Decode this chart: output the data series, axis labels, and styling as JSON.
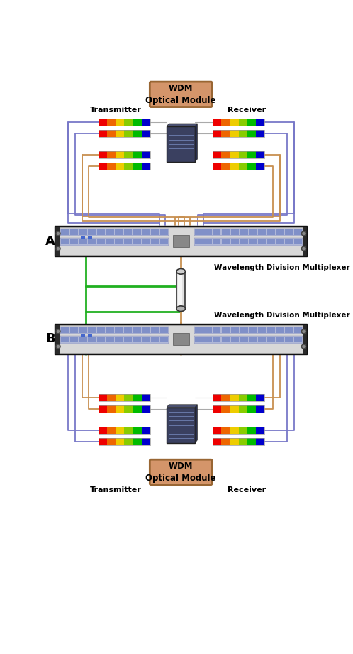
{
  "bg_color": "#ffffff",
  "wdm_box_color": "#d4956a",
  "wdm_text": "WDM\nOptical Module",
  "wdm_text_color": "#000000",
  "label_A": "A",
  "label_B": "B",
  "label_transmitter": "Transmitter",
  "label_receiver": "Receiver",
  "label_wdm": "Wavelength Division Multiplexer",
  "wire_purple": "#7878c8",
  "wire_brown": "#c89050",
  "wire_green": "#20b020",
  "spectrum_colors": [
    "#ee0000",
    "#ee6600",
    "#eecc00",
    "#88cc00",
    "#00bb00",
    "#0000cc"
  ],
  "rack_dark": "#2a2a2a",
  "rack_mid": "#555555",
  "rack_light": "#d8d8d8",
  "rack_port_color": "#8899cc"
}
